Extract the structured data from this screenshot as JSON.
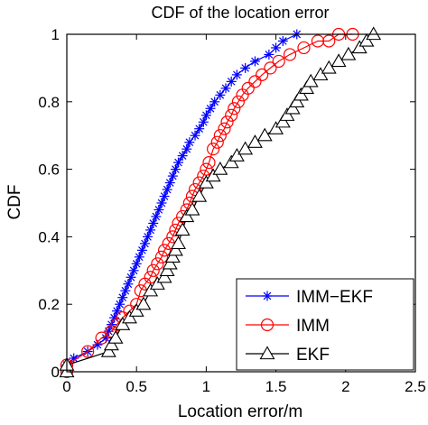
{
  "chart_data": {
    "type": "line",
    "title": "CDF of the location error",
    "xlabel": "Location error/m",
    "ylabel": "CDF",
    "xlim": [
      0,
      2.5
    ],
    "ylim": [
      0,
      1
    ],
    "xticks": [
      0,
      0.5,
      1,
      1.5,
      2,
      2.5
    ],
    "xtick_labels": [
      "0",
      "0.5",
      "1",
      "1.5",
      "2",
      "2.5"
    ],
    "yticks": [
      0,
      0.2,
      0.4,
      0.6,
      0.8,
      1
    ],
    "ytick_labels": [
      "0",
      "0.2",
      "0.4",
      "0.6",
      "0.8",
      "1"
    ],
    "grid": false,
    "legend_position": "bottom-right",
    "series": [
      {
        "name": "IMM−EKF",
        "color": "#0000ff",
        "marker": "asterisk",
        "x": [
          0.0,
          0.0,
          0.05,
          0.15,
          0.22,
          0.28,
          0.3,
          0.32,
          0.34,
          0.36,
          0.38,
          0.4,
          0.42,
          0.44,
          0.46,
          0.48,
          0.5,
          0.52,
          0.54,
          0.56,
          0.58,
          0.6,
          0.62,
          0.64,
          0.66,
          0.68,
          0.7,
          0.72,
          0.74,
          0.76,
          0.78,
          0.8,
          0.83,
          0.86,
          0.88,
          0.92,
          0.95,
          0.98,
          1.0,
          1.03,
          1.06,
          1.1,
          1.14,
          1.18,
          1.22,
          1.28,
          1.35,
          1.45,
          1.5,
          1.55,
          1.65
        ],
        "y": [
          0.0,
          0.02,
          0.04,
          0.06,
          0.08,
          0.1,
          0.12,
          0.14,
          0.16,
          0.18,
          0.2,
          0.22,
          0.24,
          0.26,
          0.28,
          0.3,
          0.32,
          0.34,
          0.36,
          0.38,
          0.4,
          0.42,
          0.44,
          0.46,
          0.48,
          0.5,
          0.52,
          0.54,
          0.56,
          0.58,
          0.6,
          0.62,
          0.64,
          0.66,
          0.68,
          0.7,
          0.72,
          0.74,
          0.76,
          0.78,
          0.8,
          0.82,
          0.84,
          0.86,
          0.88,
          0.9,
          0.92,
          0.94,
          0.96,
          0.98,
          1.0
        ]
      },
      {
        "name": "IMM",
        "color": "#ff0000",
        "marker": "circle",
        "x": [
          0.0,
          0.0,
          0.15,
          0.25,
          0.32,
          0.36,
          0.4,
          0.45,
          0.5,
          0.53,
          0.56,
          0.6,
          0.62,
          0.65,
          0.68,
          0.7,
          0.73,
          0.76,
          0.78,
          0.8,
          0.83,
          0.86,
          0.88,
          0.9,
          0.92,
          0.95,
          0.98,
          1.0,
          1.02,
          1.05,
          1.08,
          1.1,
          1.13,
          1.15,
          1.18,
          1.2,
          1.23,
          1.26,
          1.3,
          1.35,
          1.4,
          1.46,
          1.52,
          1.6,
          1.7,
          1.8,
          1.88,
          1.95,
          2.05
        ],
        "y": [
          0.0,
          0.02,
          0.06,
          0.1,
          0.12,
          0.14,
          0.16,
          0.18,
          0.2,
          0.24,
          0.26,
          0.28,
          0.3,
          0.32,
          0.34,
          0.36,
          0.38,
          0.4,
          0.42,
          0.44,
          0.46,
          0.48,
          0.5,
          0.52,
          0.54,
          0.56,
          0.58,
          0.6,
          0.62,
          0.66,
          0.68,
          0.7,
          0.72,
          0.74,
          0.76,
          0.78,
          0.8,
          0.82,
          0.84,
          0.86,
          0.88,
          0.9,
          0.92,
          0.94,
          0.96,
          0.98,
          0.98,
          1.0,
          1.0
        ]
      },
      {
        "name": "EKF",
        "color": "#000000",
        "marker": "triangle",
        "x": [
          0.0,
          0.0,
          0.3,
          0.32,
          0.35,
          0.4,
          0.45,
          0.5,
          0.55,
          0.6,
          0.65,
          0.7,
          0.72,
          0.74,
          0.76,
          0.78,
          0.8,
          0.83,
          0.86,
          0.9,
          0.95,
          1.0,
          1.05,
          1.1,
          1.18,
          1.22,
          1.28,
          1.35,
          1.42,
          1.5,
          1.55,
          1.58,
          1.62,
          1.65,
          1.68,
          1.72,
          1.75,
          1.82,
          1.88,
          1.95,
          2.02,
          2.1,
          2.15,
          2.2
        ],
        "y": [
          0.0,
          0.02,
          0.06,
          0.08,
          0.1,
          0.14,
          0.16,
          0.18,
          0.2,
          0.24,
          0.26,
          0.28,
          0.3,
          0.32,
          0.34,
          0.36,
          0.38,
          0.42,
          0.46,
          0.48,
          0.52,
          0.56,
          0.58,
          0.6,
          0.62,
          0.64,
          0.66,
          0.68,
          0.7,
          0.72,
          0.74,
          0.76,
          0.78,
          0.8,
          0.82,
          0.84,
          0.86,
          0.88,
          0.9,
          0.92,
          0.94,
          0.96,
          0.98,
          1.0
        ]
      }
    ]
  }
}
